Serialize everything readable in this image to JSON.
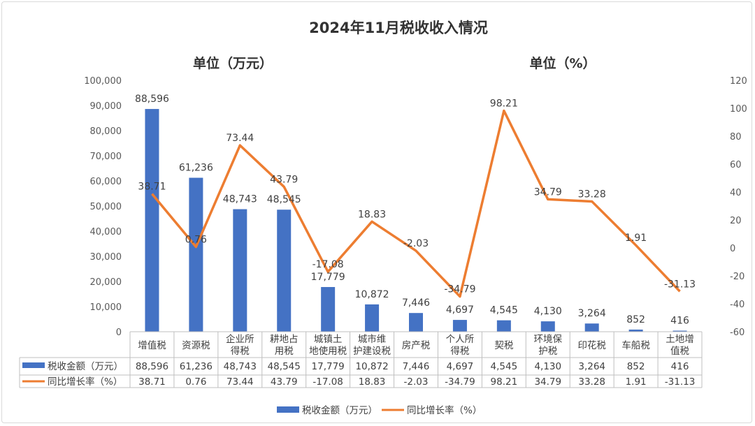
{
  "chart_data": {
    "type": "bar",
    "title": "2024年11月税收收入情况",
    "left_unit": "单位（万元）",
    "right_unit": "单位（%）",
    "categories": [
      [
        "增值税"
      ],
      [
        "资源税"
      ],
      [
        "企业所",
        "得税"
      ],
      [
        "耕地占",
        "用税"
      ],
      [
        "城镇土",
        "地使用税"
      ],
      [
        "城市维",
        "护建设税"
      ],
      [
        "房产税"
      ],
      [
        "个人所",
        "得税"
      ],
      [
        "契税"
      ],
      [
        "环境保",
        "护税"
      ],
      [
        "印花税"
      ],
      [
        "车船税"
      ],
      [
        "土地增",
        "值税"
      ]
    ],
    "series": [
      {
        "name": "税收金额（万元）",
        "type": "bar",
        "axis": "left",
        "color": "#4472C4",
        "values": [
          88596,
          61236,
          48743,
          48545,
          17779,
          10872,
          7446,
          4697,
          4545,
          4130,
          3264,
          852,
          416
        ],
        "labels": [
          "88,596",
          "61,236",
          "48,743",
          "48,545",
          "17,779",
          "10,872",
          "7,446",
          "4,697",
          "4,545",
          "4,130",
          "3,264",
          "852",
          "416"
        ]
      },
      {
        "name": "同比增长率（%）",
        "type": "line",
        "axis": "right",
        "color": "#ED7D31",
        "values": [
          38.71,
          0.76,
          73.44,
          43.79,
          -17.08,
          18.83,
          -2.03,
          -34.79,
          98.21,
          34.79,
          33.28,
          1.91,
          -31.13
        ],
        "labels": [
          "38.71",
          "0.76",
          "73.44",
          "43.79",
          "-17.08",
          "18.83",
          "-2.03",
          "-34.79",
          "98.21",
          "34.79",
          "33.28",
          "1.91",
          "-31.13"
        ]
      }
    ],
    "ylim_left": [
      0,
      100000
    ],
    "yticks_left": [
      "0",
      "10,000",
      "20,000",
      "30,000",
      "40,000",
      "50,000",
      "60,000",
      "70,000",
      "80,000",
      "90,000",
      "100,000"
    ],
    "ylim_right": [
      -60,
      120
    ],
    "yticks_right": [
      "-60",
      "-40",
      "-20",
      "0",
      "20",
      "40",
      "60",
      "80",
      "100",
      "120"
    ],
    "grid": false,
    "legend_position": "bottom",
    "data_table": true
  }
}
